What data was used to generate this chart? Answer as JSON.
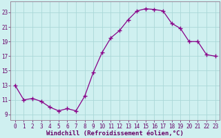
{
  "x": [
    0,
    1,
    2,
    3,
    4,
    5,
    6,
    7,
    8,
    9,
    10,
    11,
    12,
    13,
    14,
    15,
    16,
    17,
    18,
    19,
    20,
    21,
    22,
    23
  ],
  "y": [
    13,
    11,
    11.2,
    10.8,
    10.0,
    9.5,
    9.8,
    9.5,
    11.5,
    14.8,
    17.5,
    19.5,
    20.5,
    22.0,
    23.2,
    23.5,
    23.4,
    23.2,
    21.5,
    20.8,
    19.0,
    19.0,
    17.2,
    17.0
  ],
  "line_color": "#880088",
  "marker": "+",
  "marker_size": 4,
  "marker_lw": 1.0,
  "line_width": 0.9,
  "background_color": "#cff0f0",
  "grid_color": "#aad8d8",
  "xlabel": "Windchill (Refroidissement éolien,°C)",
  "xlabel_fontsize": 6.5,
  "xtick_labels": [
    "0",
    "1",
    "2",
    "3",
    "4",
    "5",
    "6",
    "7",
    "8",
    "9",
    "10",
    "11",
    "12",
    "13",
    "14",
    "15",
    "16",
    "17",
    "18",
    "19",
    "20",
    "21",
    "22",
    "23"
  ],
  "ytick_labels": [
    "9",
    "11",
    "13",
    "15",
    "17",
    "19",
    "21",
    "23"
  ],
  "yticks": [
    9,
    11,
    13,
    15,
    17,
    19,
    21,
    23
  ],
  "ylim": [
    8.2,
    24.5
  ],
  "xlim": [
    -0.5,
    23.5
  ],
  "tick_fontsize": 5.5,
  "tick_color": "#660066",
  "spine_color": "#998899"
}
